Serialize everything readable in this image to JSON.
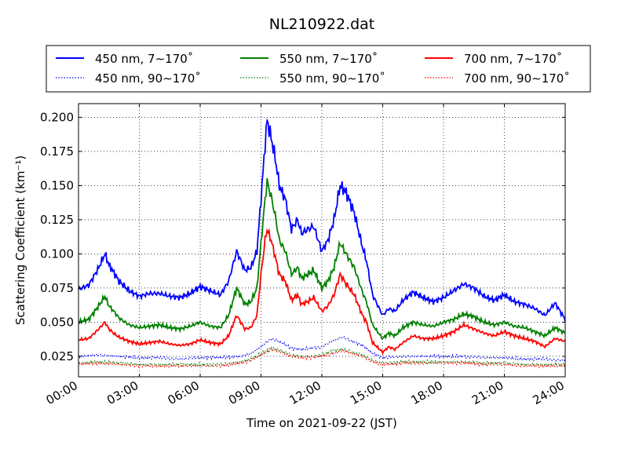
{
  "chart_data": {
    "type": "line",
    "title": "NL210922.dat",
    "xlabel": "Time on 2021-09-22 (JST)",
    "ylabel": "Scattering Coefficient (km⁻¹)",
    "x_ticks": [
      "00:00",
      "03:00",
      "06:00",
      "09:00",
      "12:00",
      "15:00",
      "18:00",
      "21:00",
      "24:00"
    ],
    "y_ticks": [
      "0.025",
      "0.050",
      "0.075",
      "0.100",
      "0.125",
      "0.150",
      "0.175",
      "0.200"
    ],
    "xlim_hours": [
      0,
      24
    ],
    "ylim": [
      0.01,
      0.21
    ],
    "grid": true,
    "legend_position": "top, above plot",
    "series": [
      {
        "name": "450 nm, 7∼170˚",
        "color": "#0000ff",
        "style": "solid",
        "x": [
          0,
          0.5,
          1,
          1.3,
          1.5,
          1.8,
          2,
          2.5,
          3,
          3.5,
          4,
          4.5,
          5,
          5.5,
          6,
          6.5,
          7,
          7.4,
          7.8,
          8.2,
          8.5,
          8.8,
          9,
          9.2,
          9.3,
          9.5,
          9.7,
          9.9,
          10.2,
          10.5,
          10.8,
          11,
          11.3,
          11.6,
          12,
          12.3,
          12.6,
          12.9,
          13.2,
          13.6,
          14,
          14.2,
          14.5,
          15,
          15.3,
          15.6,
          16,
          16.5,
          17,
          17.5,
          18,
          18.5,
          19,
          19.5,
          20,
          20.5,
          21,
          21.5,
          22,
          22.5,
          23,
          23.5,
          24
        ],
        "y": [
          0.074,
          0.077,
          0.09,
          0.1,
          0.092,
          0.085,
          0.08,
          0.073,
          0.069,
          0.071,
          0.071,
          0.069,
          0.068,
          0.071,
          0.076,
          0.073,
          0.07,
          0.08,
          0.102,
          0.088,
          0.09,
          0.102,
          0.14,
          0.18,
          0.198,
          0.185,
          0.17,
          0.15,
          0.14,
          0.118,
          0.125,
          0.115,
          0.118,
          0.12,
          0.102,
          0.11,
          0.125,
          0.15,
          0.145,
          0.13,
          0.105,
          0.095,
          0.07,
          0.055,
          0.06,
          0.058,
          0.066,
          0.072,
          0.068,
          0.065,
          0.068,
          0.073,
          0.078,
          0.075,
          0.069,
          0.066,
          0.07,
          0.065,
          0.063,
          0.06,
          0.055,
          0.064,
          0.052
        ]
      },
      {
        "name": "450 nm, 90∼170˚",
        "color": "#0000ff",
        "style": "dotted",
        "x": [
          0,
          1,
          2,
          3,
          4,
          5,
          6,
          7,
          8,
          8.5,
          9,
          9.5,
          10,
          10.5,
          11,
          11.5,
          12,
          12.5,
          13,
          13.5,
          14,
          14.5,
          15,
          16,
          17,
          18,
          19,
          20,
          21,
          22,
          23,
          24
        ],
        "y": [
          0.025,
          0.026,
          0.025,
          0.024,
          0.024,
          0.023,
          0.024,
          0.024,
          0.025,
          0.027,
          0.032,
          0.038,
          0.035,
          0.031,
          0.03,
          0.031,
          0.032,
          0.036,
          0.039,
          0.036,
          0.033,
          0.027,
          0.024,
          0.025,
          0.025,
          0.025,
          0.025,
          0.024,
          0.024,
          0.023,
          0.023,
          0.022
        ]
      },
      {
        "name": "550 nm, 7∼170˚",
        "color": "#008000",
        "style": "solid",
        "x": [
          0,
          0.5,
          1,
          1.3,
          1.5,
          1.8,
          2,
          2.5,
          3,
          3.5,
          4,
          4.5,
          5,
          5.5,
          6,
          6.5,
          7,
          7.4,
          7.8,
          8.2,
          8.5,
          8.8,
          9,
          9.2,
          9.3,
          9.5,
          9.7,
          9.9,
          10.2,
          10.5,
          10.8,
          11,
          11.3,
          11.6,
          12,
          12.3,
          12.6,
          12.9,
          13.2,
          13.6,
          14,
          14.2,
          14.5,
          15,
          15.3,
          15.6,
          16,
          16.5,
          17,
          17.5,
          18,
          18.5,
          19,
          19.5,
          20,
          20.5,
          21,
          21.5,
          22,
          22.5,
          23,
          23.5,
          24
        ],
        "y": [
          0.05,
          0.052,
          0.062,
          0.069,
          0.062,
          0.057,
          0.053,
          0.048,
          0.046,
          0.047,
          0.048,
          0.046,
          0.045,
          0.047,
          0.05,
          0.047,
          0.046,
          0.055,
          0.075,
          0.063,
          0.065,
          0.075,
          0.108,
          0.14,
          0.153,
          0.142,
          0.128,
          0.11,
          0.102,
          0.085,
          0.09,
          0.082,
          0.085,
          0.088,
          0.075,
          0.08,
          0.09,
          0.108,
          0.1,
          0.09,
          0.072,
          0.065,
          0.048,
          0.038,
          0.042,
          0.04,
          0.046,
          0.05,
          0.048,
          0.047,
          0.05,
          0.052,
          0.056,
          0.054,
          0.05,
          0.048,
          0.05,
          0.047,
          0.046,
          0.043,
          0.04,
          0.046,
          0.042
        ]
      },
      {
        "name": "550 nm, 90∼170˚",
        "color": "#008000",
        "style": "dotted",
        "x": [
          0,
          1,
          2,
          3,
          4,
          5,
          6,
          7,
          8,
          8.5,
          9,
          9.5,
          10,
          10.5,
          11,
          11.5,
          12,
          12.5,
          13,
          13.5,
          14,
          14.5,
          15,
          16,
          17,
          18,
          19,
          20,
          21,
          22,
          23,
          24
        ],
        "y": [
          0.02,
          0.021,
          0.02,
          0.019,
          0.019,
          0.019,
          0.019,
          0.019,
          0.021,
          0.023,
          0.027,
          0.031,
          0.029,
          0.026,
          0.025,
          0.025,
          0.026,
          0.029,
          0.03,
          0.028,
          0.026,
          0.022,
          0.02,
          0.021,
          0.021,
          0.021,
          0.021,
          0.02,
          0.02,
          0.019,
          0.019,
          0.019
        ]
      },
      {
        "name": "700 nm, 7∼170˚",
        "color": "#ff0000",
        "style": "solid",
        "x": [
          0,
          0.5,
          1,
          1.3,
          1.5,
          1.8,
          2,
          2.5,
          3,
          3.5,
          4,
          4.5,
          5,
          5.5,
          6,
          6.5,
          7,
          7.4,
          7.8,
          8.2,
          8.5,
          8.8,
          9,
          9.2,
          9.3,
          9.5,
          9.7,
          9.9,
          10.2,
          10.5,
          10.8,
          11,
          11.3,
          11.6,
          12,
          12.3,
          12.6,
          12.9,
          13.2,
          13.6,
          14,
          14.2,
          14.5,
          15,
          15.3,
          15.6,
          16,
          16.5,
          17,
          17.5,
          18,
          18.5,
          19,
          19.5,
          20,
          20.5,
          21,
          21.5,
          22,
          22.5,
          23,
          23.5,
          24
        ],
        "y": [
          0.037,
          0.038,
          0.045,
          0.05,
          0.045,
          0.041,
          0.039,
          0.036,
          0.034,
          0.035,
          0.036,
          0.034,
          0.033,
          0.034,
          0.037,
          0.035,
          0.034,
          0.04,
          0.055,
          0.045,
          0.046,
          0.055,
          0.085,
          0.11,
          0.118,
          0.11,
          0.098,
          0.085,
          0.08,
          0.066,
          0.07,
          0.063,
          0.065,
          0.068,
          0.058,
          0.062,
          0.07,
          0.085,
          0.078,
          0.07,
          0.055,
          0.05,
          0.035,
          0.028,
          0.032,
          0.03,
          0.035,
          0.04,
          0.038,
          0.038,
          0.04,
          0.043,
          0.048,
          0.045,
          0.042,
          0.04,
          0.043,
          0.04,
          0.038,
          0.036,
          0.032,
          0.038,
          0.036
        ]
      },
      {
        "name": "700 nm, 90∼170˚",
        "color": "#ff0000",
        "style": "dotted",
        "x": [
          0,
          1,
          2,
          3,
          4,
          5,
          6,
          7,
          8,
          8.5,
          9,
          9.5,
          10,
          10.5,
          11,
          11.5,
          12,
          12.5,
          13,
          13.5,
          14,
          14.5,
          15,
          16,
          17,
          18,
          19,
          20,
          21,
          22,
          23,
          24
        ],
        "y": [
          0.019,
          0.02,
          0.019,
          0.018,
          0.018,
          0.018,
          0.018,
          0.018,
          0.02,
          0.022,
          0.026,
          0.03,
          0.028,
          0.025,
          0.024,
          0.024,
          0.025,
          0.027,
          0.029,
          0.027,
          0.025,
          0.021,
          0.019,
          0.02,
          0.02,
          0.02,
          0.02,
          0.019,
          0.019,
          0.018,
          0.018,
          0.018
        ]
      }
    ]
  }
}
